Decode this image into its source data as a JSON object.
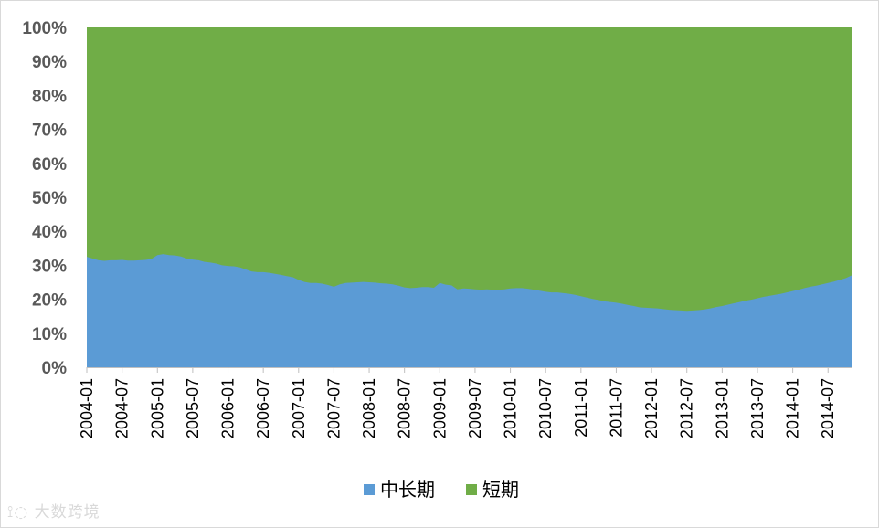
{
  "chart_data": {
    "type": "area",
    "stacked": true,
    "normalized": true,
    "x": [
      "2004-01",
      "2004-07",
      "2005-01",
      "2005-07",
      "2006-01",
      "2006-07",
      "2007-01",
      "2007-07",
      "2008-01",
      "2008-07",
      "2009-01",
      "2009-07",
      "2010-01",
      "2010-07",
      "2011-01",
      "2011-07",
      "2012-01",
      "2012-07",
      "2013-01",
      "2013-07",
      "2014-01",
      "2014-07"
    ],
    "xticks": [
      "2004-01",
      "2004-07",
      "2005-01",
      "2005-07",
      "2006-01",
      "2006-07",
      "2007-01",
      "2007-07",
      "2008-01",
      "2008-07",
      "2009-01",
      "2009-07",
      "2010-01",
      "2010-07",
      "2011-01",
      "2011-07",
      "2012-01",
      "2012-07",
      "2013-01",
      "2013-07",
      "2014-01",
      "2014-07"
    ],
    "yticks": [
      "0%",
      "10%",
      "20%",
      "30%",
      "40%",
      "50%",
      "60%",
      "70%",
      "80%",
      "90%",
      "100%"
    ],
    "ylim": [
      0,
      100
    ],
    "grid": false,
    "legend_position": "bottom",
    "series": [
      {
        "name": "中长期",
        "color": "#5B9BD5",
        "x": [
          0,
          1,
          2,
          3,
          4,
          5,
          6,
          7,
          8,
          9,
          10,
          11,
          12,
          13,
          14,
          15,
          16,
          17,
          18,
          19,
          20,
          21,
          22,
          23,
          24,
          25,
          26,
          27,
          28,
          29,
          30,
          31,
          32,
          33,
          34,
          35,
          36,
          37,
          38,
          39,
          40,
          41,
          42,
          43,
          44,
          45,
          46,
          47,
          48,
          49,
          50,
          51,
          52,
          53,
          54,
          55,
          56,
          57,
          58,
          59,
          60,
          61,
          62,
          63,
          64,
          65,
          66,
          67,
          68,
          69,
          70,
          71,
          72,
          73,
          74,
          75,
          76,
          77,
          78,
          79,
          80,
          81,
          82,
          83,
          84,
          85,
          86,
          87,
          88,
          89,
          90,
          91,
          92,
          93,
          94,
          95,
          96,
          97,
          98,
          99,
          100,
          101,
          102,
          103,
          104,
          105,
          106,
          107,
          108,
          109,
          110,
          111,
          112,
          113,
          114,
          115,
          116,
          117,
          118,
          119,
          120,
          121,
          122,
          123,
          124,
          125,
          126,
          127,
          128,
          129,
          130
        ],
        "values": [
          32.5,
          32.0,
          31.5,
          31.3,
          31.5,
          31.5,
          31.6,
          31.4,
          31.4,
          31.5,
          31.6,
          31.9,
          33.0,
          33.3,
          33.0,
          32.9,
          32.6,
          32.0,
          31.7,
          31.5,
          31.0,
          30.8,
          30.5,
          30.0,
          29.8,
          29.7,
          29.4,
          28.8,
          28.2,
          28.0,
          28.0,
          27.8,
          27.5,
          27.2,
          26.8,
          26.5,
          25.7,
          25.1,
          24.8,
          24.8,
          24.6,
          24.2,
          23.7,
          24.4,
          24.8,
          24.9,
          25.0,
          25.1,
          25.0,
          24.9,
          24.7,
          24.6,
          24.4,
          24.0,
          23.5,
          23.3,
          23.4,
          23.6,
          23.6,
          23.4,
          24.8,
          24.3,
          24.1,
          22.9,
          23.2,
          23.1,
          22.9,
          22.8,
          22.9,
          22.8,
          22.8,
          22.9,
          23.2,
          23.3,
          23.3,
          23.1,
          22.8,
          22.5,
          22.2,
          22.0,
          22.0,
          21.8,
          21.6,
          21.3,
          20.9,
          20.5,
          20.1,
          19.8,
          19.4,
          19.2,
          19.0,
          18.7,
          18.3,
          18.0,
          17.6,
          17.5,
          17.4,
          17.3,
          17.1,
          16.9,
          16.8,
          16.7,
          16.6,
          16.7,
          16.8,
          17.0,
          17.3,
          17.7,
          18.0,
          18.4,
          18.8,
          19.2,
          19.6,
          19.9,
          20.3,
          20.7,
          21.0,
          21.3,
          21.6,
          22.0,
          22.4,
          22.8,
          23.3,
          23.7,
          24.0,
          24.4,
          24.8,
          25.2,
          25.7,
          26.2,
          27.0
        ]
      },
      {
        "name": "短期",
        "color": "#70AD47",
        "note_values": "remainder to 100%"
      }
    ]
  },
  "legend": {
    "items": [
      {
        "label": "中长期",
        "color": "#5B9BD5"
      },
      {
        "label": "短期",
        "color": "#70AD47"
      }
    ]
  },
  "watermark": {
    "text": "大数跨境"
  }
}
